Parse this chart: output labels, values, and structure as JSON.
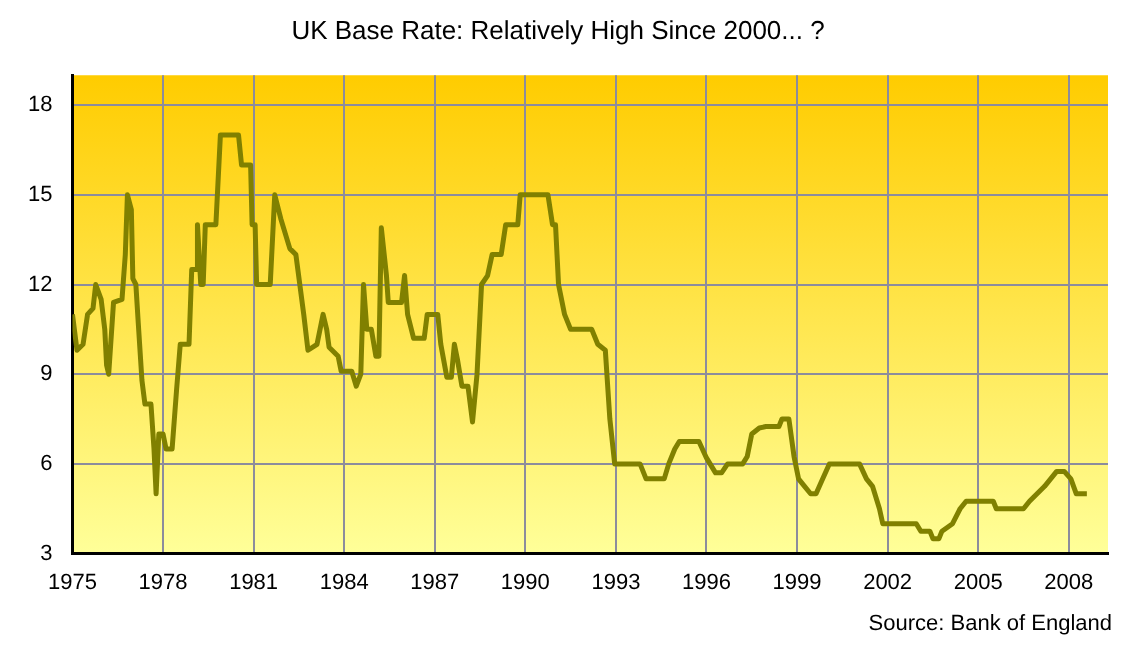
{
  "chart_data": {
    "type": "line",
    "title": "UK Base Rate: Relatively High Since 2000... ?",
    "annotations": [
      "Source: Bank of England"
    ],
    "series": [
      {
        "color": "#808000",
        "x": [
          1975.0,
          1975.15,
          1975.35,
          1975.5,
          1975.68,
          1975.77,
          1975.95,
          1976.07,
          1976.13,
          1976.2,
          1976.36,
          1976.64,
          1976.75,
          1976.82,
          1976.95,
          1977.0,
          1977.1,
          1977.18,
          1977.3,
          1977.4,
          1977.6,
          1977.7,
          1977.77,
          1977.86,
          1978.0,
          1978.1,
          1978.3,
          1978.45,
          1978.57,
          1978.86,
          1978.95,
          1979.1,
          1979.14,
          1979.25,
          1979.33,
          1979.4,
          1979.75,
          1979.9,
          1980.5,
          1980.6,
          1980.9,
          1980.95,
          1981.05,
          1981.1,
          1981.55,
          1981.7,
          1981.9,
          1982.2,
          1982.4,
          1982.66,
          1982.8,
          1983.1,
          1983.3,
          1983.42,
          1983.5,
          1983.8,
          1983.9,
          1984.25,
          1984.4,
          1984.55,
          1984.64,
          1984.75,
          1984.9,
          1985.05,
          1985.15,
          1985.23,
          1985.4,
          1985.46,
          1985.9,
          1986.0,
          1986.1,
          1986.3,
          1986.65,
          1986.75,
          1987.1,
          1987.2,
          1987.4,
          1987.55,
          1987.65,
          1987.75,
          1987.9,
          1988.1,
          1988.25,
          1988.4,
          1988.55,
          1988.75,
          1988.9,
          1989.2,
          1989.35,
          1989.75,
          1989.83,
          1990.75,
          1990.9,
          1991.0,
          1991.1,
          1991.3,
          1991.5,
          1991.65,
          1992.2,
          1992.4,
          1992.65,
          1992.8,
          1992.96,
          1993.8,
          1994.0,
          1994.6,
          1994.75,
          1994.95,
          1995.1,
          1995.75,
          1996.0,
          1996.3,
          1996.5,
          1996.7,
          1996.8,
          1997.2,
          1997.35,
          1997.5,
          1997.75,
          1997.97,
          1998.4,
          1998.5,
          1998.73,
          1998.9,
          1999.05,
          1999.25,
          1999.45,
          1999.63,
          1999.85,
          2000.07,
          2001.07,
          2001.3,
          2001.5,
          2001.73,
          2001.84,
          2002.95,
          2003.1,
          2003.4,
          2003.5,
          2003.7,
          2003.8,
          2004.15,
          2004.4,
          2004.6,
          2005.5,
          2005.6,
          2006.5,
          2006.7,
          2006.95,
          2007.2,
          2007.4,
          2007.6,
          2007.85,
          2008.07,
          2008.25,
          2008.6
        ],
        "values": [
          11,
          9.8,
          10,
          11,
          11.2,
          12,
          11.5,
          10.5,
          9.3,
          9,
          11.4,
          11.5,
          13,
          15,
          14.5,
          12.2,
          12,
          10.7,
          8.8,
          8,
          8,
          6.5,
          5,
          7,
          7,
          6.5,
          6.5,
          8.5,
          10,
          10,
          12.5,
          12.5,
          14,
          12,
          12,
          14,
          14,
          17,
          17,
          16,
          16,
          14,
          14,
          12,
          12,
          15,
          14.2,
          13.2,
          13,
          11,
          9.8,
          10,
          11,
          10.5,
          9.9,
          9.6,
          9.1,
          9.1,
          8.6,
          9,
          12,
          10.5,
          10.5,
          9.6,
          9.6,
          13.9,
          12.3,
          11.4,
          11.4,
          12.3,
          11,
          10.2,
          10.2,
          11,
          11,
          10,
          8.9,
          8.9,
          10,
          9.5,
          8.6,
          8.6,
          7.4,
          9,
          12,
          12.3,
          13,
          13,
          14,
          14,
          15,
          15,
          14,
          14,
          12,
          11,
          10.5,
          10.5,
          10.5,
          10,
          9.8,
          7.5,
          6,
          6,
          5.5,
          5.5,
          6,
          6.5,
          6.75,
          6.75,
          6.2,
          5.7,
          5.7,
          6,
          6,
          6,
          6.25,
          7,
          7.2,
          7.25,
          7.25,
          7.5,
          7.5,
          6.25,
          5.5,
          5.25,
          5,
          5,
          5.5,
          6,
          6,
          5.5,
          5.25,
          4.5,
          4,
          4,
          3.75,
          3.75,
          3.5,
          3.5,
          3.75,
          4,
          4.5,
          4.75,
          4.75,
          4.5,
          4.5,
          4.75,
          5,
          5.25,
          5.5,
          5.75,
          5.75,
          5.5,
          5,
          5
        ]
      }
    ],
    "xlim": [
      1975,
      2009.3
    ],
    "xticks": [
      1975,
      1978,
      1981,
      1984,
      1987,
      1990,
      1993,
      1996,
      1999,
      2002,
      2005,
      2008
    ],
    "ylim": [
      3,
      19
    ],
    "yticks": [
      3,
      6,
      9,
      12,
      15,
      18
    ],
    "grid": true,
    "legend": false
  }
}
